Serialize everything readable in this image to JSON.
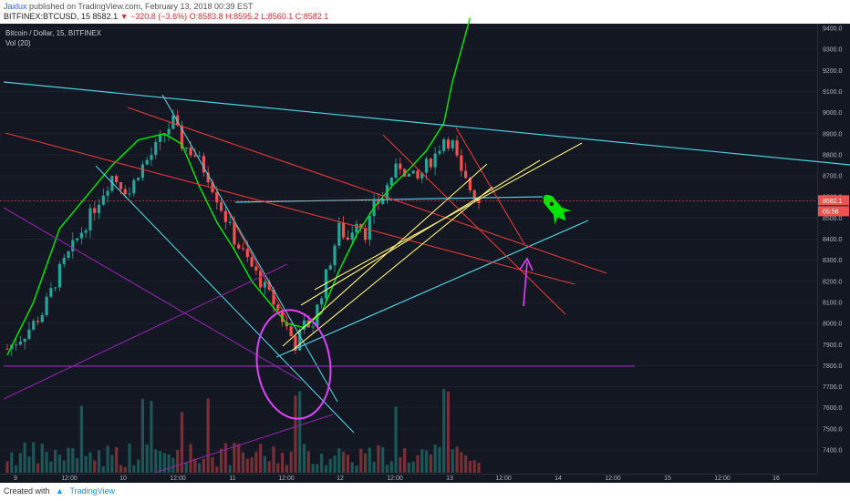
{
  "header": {
    "publisher": "Jaxlux",
    "published_text": "published on TradingView.com, February 13, 2018 00:39 EST",
    "symbol": "BITFINEX:BTCUSD, 15",
    "last": "8582.1",
    "change": "−320.8 (−3.6%)",
    "open": "O:8583.8",
    "high": "H:8595.2",
    "low": "L:8560.1",
    "close": "C:8582.1"
  },
  "legend": {
    "title": "Bitcoin / Dollar, 15, BITFINEX",
    "volume": "Vol (20)"
  },
  "footer": {
    "created_with": "Created with",
    "brand": "TradingView"
  },
  "price_tags": {
    "last_price": "8582.1",
    "countdown": "05:56"
  },
  "colors": {
    "background": "#131722",
    "cyan": "#4dd0e1",
    "red": "#e53935",
    "yellow": "#fff176",
    "purple": "#8e24aa",
    "magenta": "#e040fb",
    "green_ma": "#00e600",
    "rocket": "#00e600",
    "up_candle": "#26a69a",
    "down_candle": "#ef5350"
  },
  "icons": [
    "rocket-icon",
    "arrow-up-icon",
    "tradingview-logo-icon"
  ],
  "chart_data": {
    "type": "candlestick",
    "title": "Bitcoin / Dollar, 15, BITFINEX",
    "y_ticks": [
      9400,
      9300,
      9200,
      9100,
      9000,
      8900,
      8800,
      8700,
      8600,
      8500,
      8400,
      8300,
      8200,
      8100,
      8000,
      7900,
      7800,
      7700,
      7600,
      7500,
      7400
    ],
    "x_ticks": [
      "9",
      "12:00",
      "10",
      "12:00",
      "11",
      "12:00",
      "12",
      "12:00",
      "13",
      "12:00",
      "14",
      "12:00",
      "15",
      "12:00",
      "16"
    ],
    "ylim": [
      7300,
      9450
    ],
    "close_path": [
      [
        0,
        7880
      ],
      [
        4,
        7950
      ],
      [
        8,
        8050
      ],
      [
        12,
        8250
      ],
      [
        16,
        8400
      ],
      [
        20,
        8550
      ],
      [
        24,
        8700
      ],
      [
        28,
        8620
      ],
      [
        30,
        8720
      ],
      [
        33,
        8800
      ],
      [
        36,
        8900
      ],
      [
        38,
        8960
      ],
      [
        40,
        8850
      ],
      [
        43,
        8800
      ],
      [
        46,
        8700
      ],
      [
        49,
        8550
      ],
      [
        52,
        8400
      ],
      [
        55,
        8300
      ],
      [
        58,
        8200
      ],
      [
        61,
        8100
      ],
      [
        64,
        7980
      ],
      [
        66,
        7900
      ],
      [
        68,
        7990
      ],
      [
        70,
        8000
      ],
      [
        72,
        8150
      ],
      [
        74,
        8300
      ],
      [
        76,
        8450
      ],
      [
        78,
        8400
      ],
      [
        80,
        8500
      ],
      [
        82,
        8430
      ],
      [
        84,
        8550
      ],
      [
        86,
        8600
      ],
      [
        88,
        8700
      ],
      [
        90,
        8750
      ],
      [
        92,
        8700
      ],
      [
        94,
        8680
      ],
      [
        96,
        8750
      ],
      [
        98,
        8800
      ],
      [
        100,
        8880
      ],
      [
        102,
        8850
      ],
      [
        104,
        8700
      ],
      [
        106,
        8640
      ],
      [
        108,
        8582
      ]
    ],
    "ma_path": [
      [
        0,
        7850
      ],
      [
        6,
        8100
      ],
      [
        12,
        8450
      ],
      [
        18,
        8600
      ],
      [
        24,
        8750
      ],
      [
        30,
        8870
      ],
      [
        36,
        8900
      ],
      [
        40,
        8850
      ],
      [
        44,
        8650
      ],
      [
        48,
        8480
      ],
      [
        52,
        8350
      ],
      [
        56,
        8200
      ],
      [
        60,
        8100
      ],
      [
        64,
        8000
      ],
      [
        68,
        7980
      ],
      [
        72,
        8050
      ],
      [
        76,
        8250
      ],
      [
        80,
        8420
      ],
      [
        84,
        8550
      ],
      [
        88,
        8650
      ],
      [
        92,
        8730
      ],
      [
        96,
        8820
      ],
      [
        100,
        8950
      ],
      [
        102,
        9150
      ],
      [
        104,
        9300
      ],
      [
        106,
        9450
      ]
    ],
    "last_price": 8582.1
  }
}
